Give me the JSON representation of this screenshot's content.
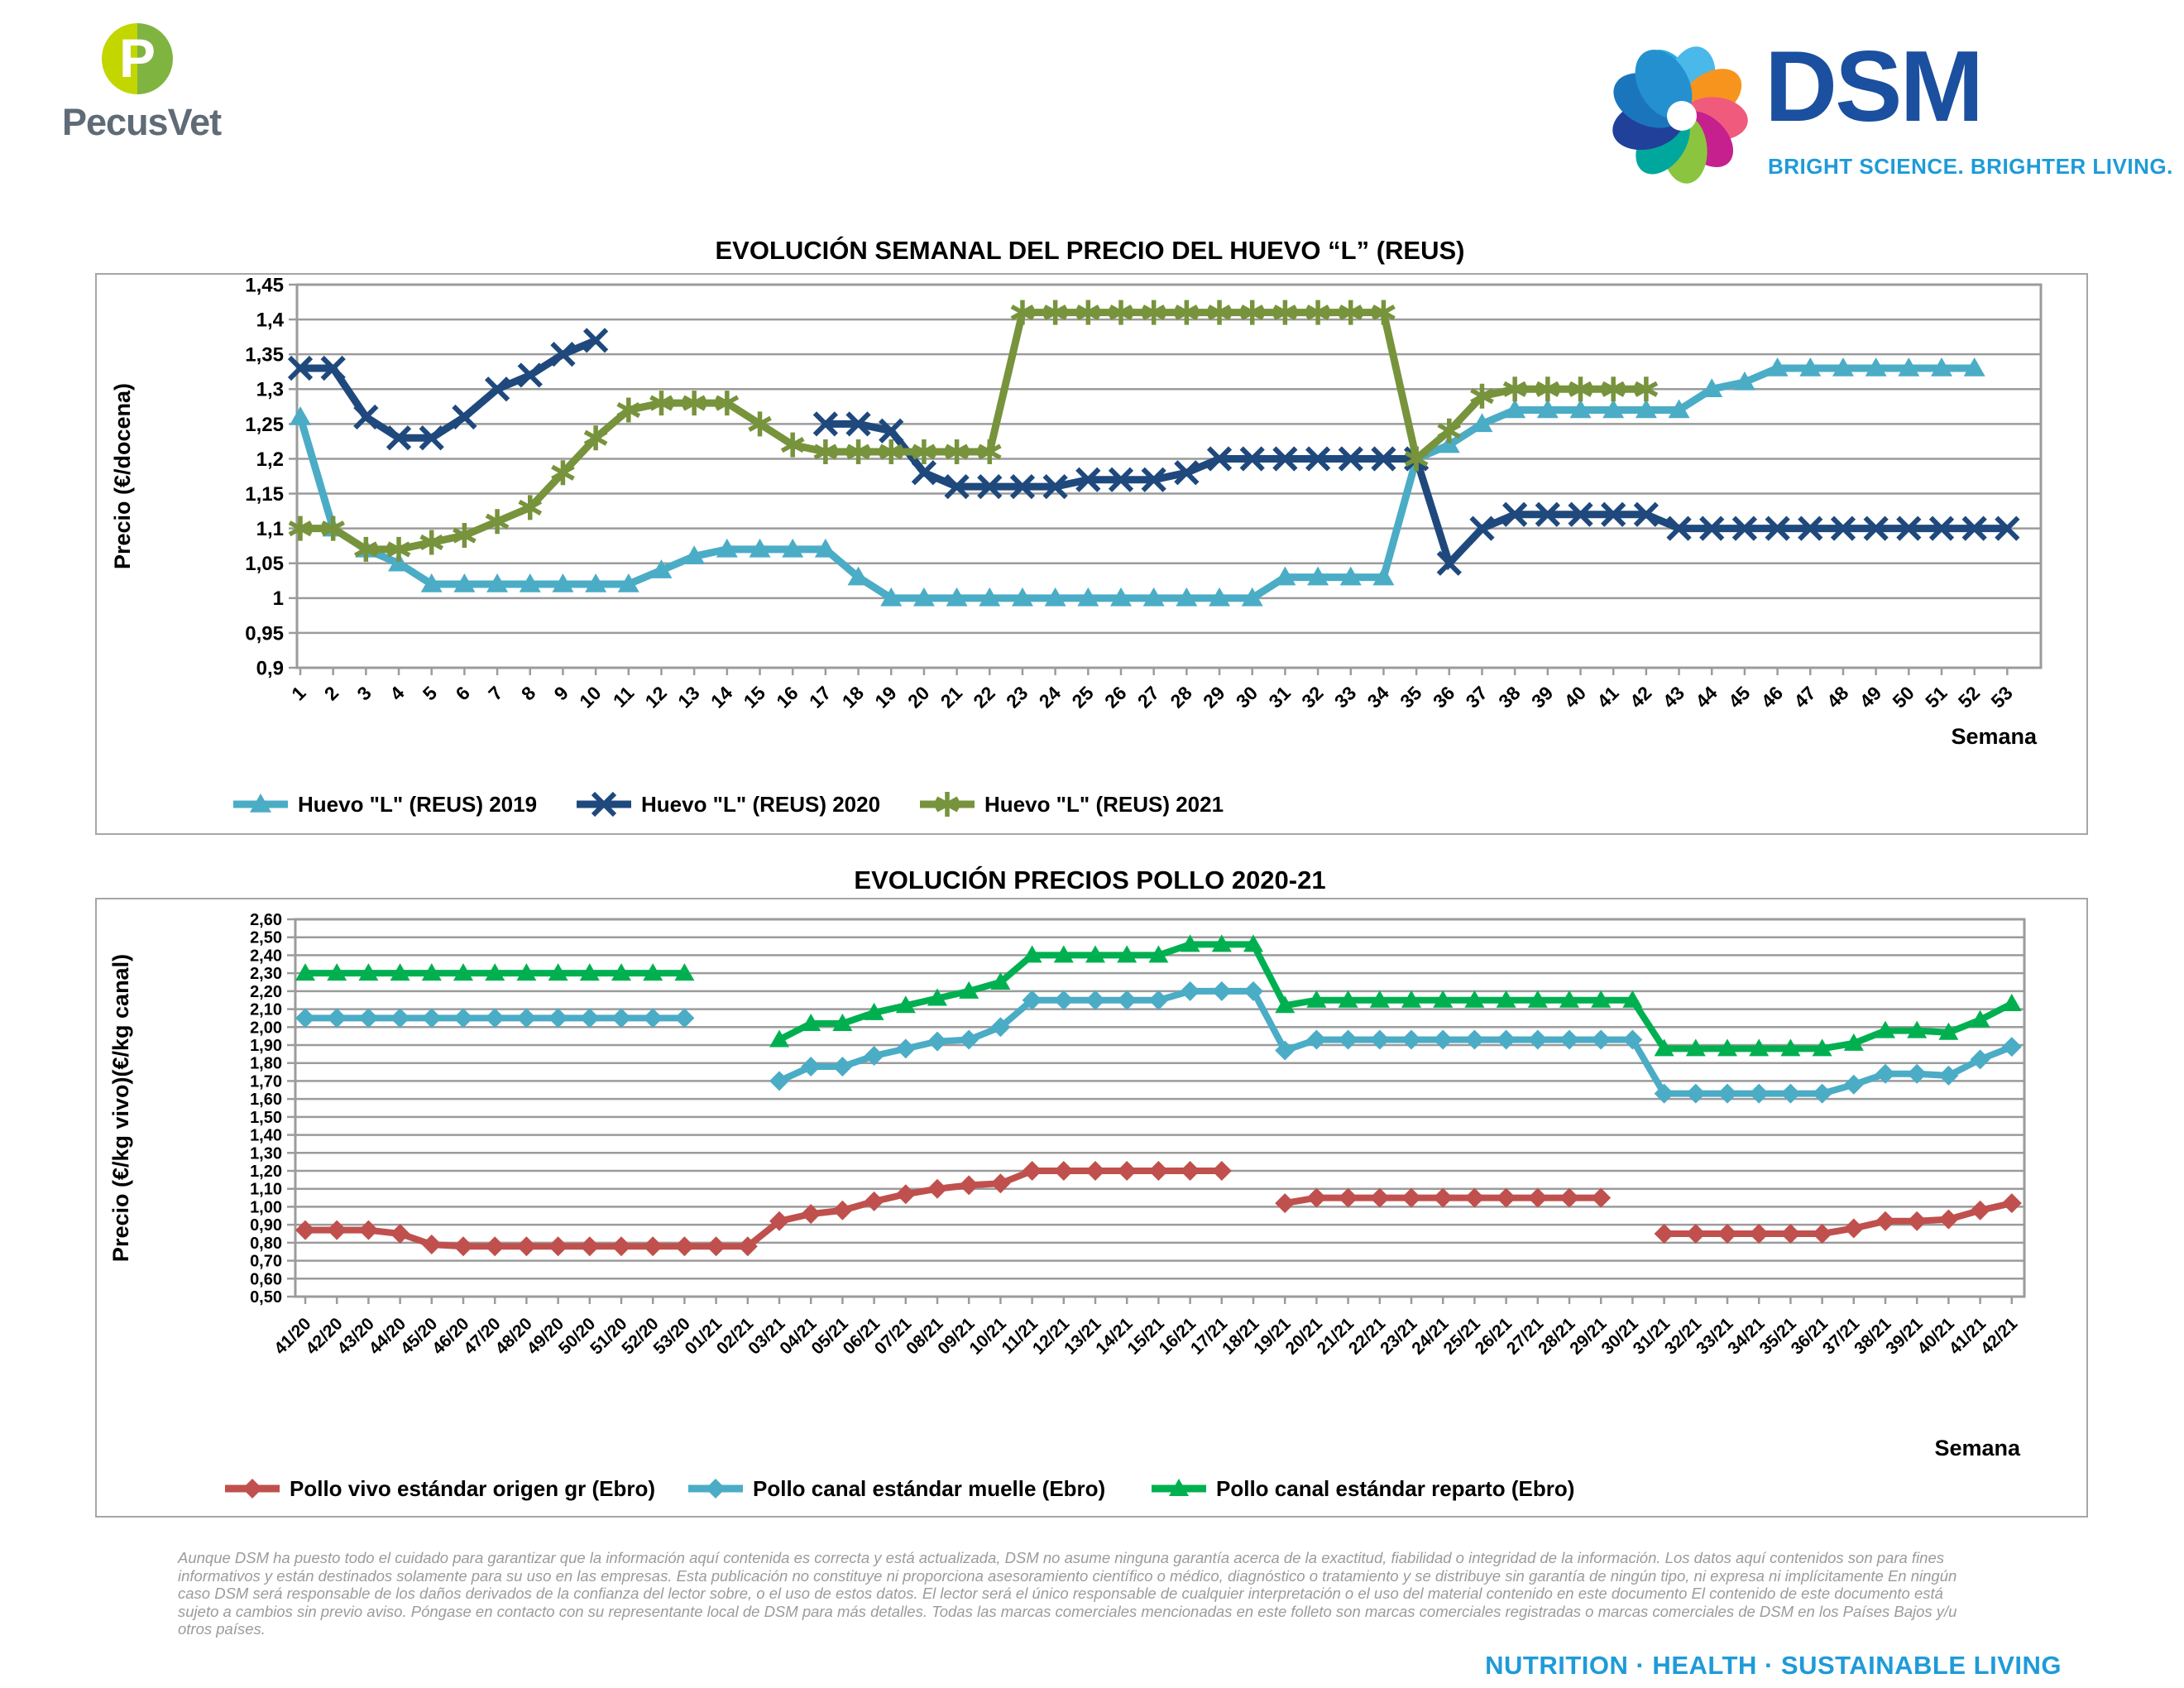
{
  "header": {
    "pecusvet_text": "PecusVet",
    "pecusvet_monogram": "P",
    "dsm_text": "DSM",
    "dsm_tagline": "BRIGHT SCIENCE. BRIGHTER LIVING.",
    "colors": {
      "pecusvet_yellow_green": "#c3d600",
      "pecusvet_green": "#7fb441",
      "dsm_blue": "#1b4f9f",
      "dsm_light_blue": "#1e9bd8"
    }
  },
  "chart_data": [
    {
      "type": "line",
      "title": "EVOLUCIÓN SEMANAL DEL PRECIO DEL HUEVO “L” (REUS)",
      "ylabel": "Precio (€/docena)",
      "xlabel": "Semana",
      "ylim": [
        0.9,
        1.45
      ],
      "ytick_step": 0.05,
      "grid": true,
      "legend_position": "bottom",
      "categories": [
        1,
        2,
        3,
        4,
        5,
        6,
        7,
        8,
        9,
        10,
        11,
        12,
        13,
        14,
        15,
        16,
        17,
        18,
        19,
        20,
        21,
        22,
        23,
        24,
        25,
        26,
        27,
        28,
        29,
        30,
        31,
        32,
        33,
        34,
        35,
        36,
        37,
        38,
        39,
        40,
        41,
        42,
        43,
        44,
        45,
        46,
        47,
        48,
        49,
        50,
        51,
        52,
        53
      ],
      "series": [
        {
          "name": "Huevo \"L\" (REUS) 2019",
          "color": "#4BACC6",
          "marker": "triangle",
          "values": [
            1.26,
            1.1,
            1.07,
            1.05,
            1.02,
            1.02,
            1.02,
            1.02,
            1.02,
            1.02,
            1.02,
            1.04,
            1.06,
            1.07,
            1.07,
            1.07,
            1.07,
            1.03,
            1.0,
            1.0,
            1.0,
            1.0,
            1.0,
            1.0,
            1.0,
            1.0,
            1.0,
            1.0,
            1.0,
            1.0,
            1.03,
            1.03,
            1.03,
            1.03,
            1.2,
            1.22,
            1.25,
            1.27,
            1.27,
            1.27,
            1.27,
            1.27,
            1.27,
            1.3,
            1.31,
            1.33,
            1.33,
            1.33,
            1.33,
            1.33,
            1.33,
            1.33
          ]
        },
        {
          "name": "Huevo \"L\" (REUS) 2020",
          "color": "#1F497D",
          "marker": "x",
          "values": [
            1.33,
            1.33,
            1.26,
            1.23,
            1.23,
            1.26,
            1.3,
            1.32,
            1.35,
            1.37,
            null,
            null,
            null,
            null,
            null,
            null,
            1.25,
            1.25,
            1.24,
            1.18,
            1.16,
            1.16,
            1.16,
            1.16,
            1.17,
            1.17,
            1.17,
            1.18,
            1.2,
            1.2,
            1.2,
            1.2,
            1.2,
            1.2,
            1.2,
            1.05,
            1.1,
            1.12,
            1.12,
            1.12,
            1.12,
            1.12,
            1.1,
            1.1,
            1.1,
            1.1,
            1.1,
            1.1,
            1.1,
            1.1,
            1.1,
            1.1,
            1.1
          ]
        },
        {
          "name": "Huevo \"L\" (REUS) 2021",
          "color": "#77933C",
          "marker": "star",
          "values": [
            1.1,
            1.1,
            1.07,
            1.07,
            1.08,
            1.09,
            1.11,
            1.13,
            1.18,
            1.23,
            1.27,
            1.28,
            1.28,
            1.28,
            1.25,
            1.22,
            1.21,
            1.21,
            1.21,
            1.21,
            1.21,
            1.21,
            1.41,
            1.41,
            1.41,
            1.41,
            1.41,
            1.41,
            1.41,
            1.41,
            1.41,
            1.41,
            1.41,
            1.41,
            1.2,
            1.24,
            1.29,
            1.3,
            1.3,
            1.3,
            1.3,
            1.3
          ]
        }
      ]
    },
    {
      "type": "line",
      "title": "EVOLUCIÓN PRECIOS POLLO 2020-21",
      "ylabel": "Precio (€/kg vivo)(€/kg canal)",
      "xlabel": "Semana",
      "ylim": [
        0.5,
        2.6
      ],
      "ytick_step": 0.1,
      "grid": true,
      "legend_position": "bottom",
      "categories": [
        "41/20",
        "42/20",
        "43/20",
        "44/20",
        "45/20",
        "46/20",
        "47/20",
        "48/20",
        "49/20",
        "50/20",
        "51/20",
        "52/20",
        "53/20",
        "01/21",
        "02/21",
        "03/21",
        "04/21",
        "05/21",
        "06/21",
        "07/21",
        "08/21",
        "09/21",
        "10/21",
        "11/21",
        "12/21",
        "13/21",
        "14/21",
        "15/21",
        "16/21",
        "17/21",
        "18/21",
        "19/21",
        "20/21",
        "21/21",
        "22/21",
        "23/21",
        "24/21",
        "25/21",
        "26/21",
        "27/21",
        "28/21",
        "29/21",
        "30/21",
        "31/21",
        "32/21",
        "33/21",
        "34/21",
        "35/21",
        "36/21",
        "37/21",
        "38/21",
        "39/21",
        "40/21",
        "41/21",
        "42/21"
      ],
      "series": [
        {
          "name": "Pollo vivo estándar origen gr (Ebro)",
          "color": "#C0504D",
          "marker": "diamond",
          "values": [
            0.87,
            0.87,
            0.87,
            0.85,
            0.79,
            0.78,
            0.78,
            0.78,
            0.78,
            0.78,
            0.78,
            0.78,
            0.78,
            0.78,
            0.78,
            0.92,
            0.96,
            0.98,
            1.03,
            1.07,
            1.1,
            1.12,
            1.13,
            1.2,
            1.2,
            1.2,
            1.2,
            1.2,
            1.2,
            1.2,
            null,
            1.02,
            1.05,
            1.05,
            1.05,
            1.05,
            1.05,
            1.05,
            1.05,
            1.05,
            1.05,
            1.05,
            null,
            0.85,
            0.85,
            0.85,
            0.85,
            0.85,
            0.85,
            0.88,
            0.92,
            0.92,
            0.93,
            0.98,
            1.02
          ]
        },
        {
          "name": "Pollo canal estándar muelle (Ebro)",
          "color": "#4BACC6",
          "marker": "diamond",
          "values": [
            2.05,
            2.05,
            2.05,
            2.05,
            2.05,
            2.05,
            2.05,
            2.05,
            2.05,
            2.05,
            2.05,
            2.05,
            2.05,
            null,
            null,
            1.7,
            1.78,
            1.78,
            1.84,
            1.88,
            1.92,
            1.93,
            2.0,
            2.15,
            2.15,
            2.15,
            2.15,
            2.15,
            2.2,
            2.2,
            2.2,
            1.87,
            1.93,
            1.93,
            1.93,
            1.93,
            1.93,
            1.93,
            1.93,
            1.93,
            1.93,
            1.93,
            1.93,
            1.63,
            1.63,
            1.63,
            1.63,
            1.63,
            1.63,
            1.68,
            1.74,
            1.74,
            1.73,
            1.82,
            1.89
          ]
        },
        {
          "name": "Pollo canal estándar reparto (Ebro)",
          "color": "#00B050",
          "marker": "triangle",
          "values": [
            2.3,
            2.3,
            2.3,
            2.3,
            2.3,
            2.3,
            2.3,
            2.3,
            2.3,
            2.3,
            2.3,
            2.3,
            2.3,
            null,
            null,
            1.93,
            2.02,
            2.02,
            2.08,
            2.12,
            2.16,
            2.2,
            2.25,
            2.4,
            2.4,
            2.4,
            2.4,
            2.4,
            2.46,
            2.46,
            2.46,
            2.12,
            2.15,
            2.15,
            2.15,
            2.15,
            2.15,
            2.15,
            2.15,
            2.15,
            2.15,
            2.15,
            2.15,
            1.88,
            1.88,
            1.88,
            1.88,
            1.88,
            1.88,
            1.91,
            1.98,
            1.98,
            1.97,
            2.04,
            2.13
          ]
        }
      ]
    }
  ],
  "footer": {
    "disclaimer_lines": [
      "Aunque DSM ha puesto todo el cuidado para garantizar que la información aquí contenida es correcta y está actualizada, DSM no asume ninguna garantía acerca de la exactitud, fiabilidad o integridad de la información. Los datos aquí contenidos son para fines",
      "informativos y están destinados solamente para su uso en las empresas. Esta publicación no constituye ni proporciona asesoramiento científico o médico, diagnóstico o tratamiento y se distribuye sin garantía de ningún tipo, ni expresa ni implícitamente En ningún",
      "caso DSM será responsable de los daños derivados de la confianza del lector sobre, o el uso de estos datos. El lector será el único responsable de cualquier interpretación o el uso del material contenido en este documento El contenido de este documento está",
      "sujeto a cambios sin previo aviso. Póngase en contacto con su representante local de DSM para más detalles. Todas las marcas comerciales mencionadas en este folleto son marcas comerciales registradas o marcas comerciales de DSM en los Países Bajos y/u",
      "otros países."
    ],
    "motto": "NUTRITION · HEALTH · SUSTAINABLE LIVING"
  }
}
